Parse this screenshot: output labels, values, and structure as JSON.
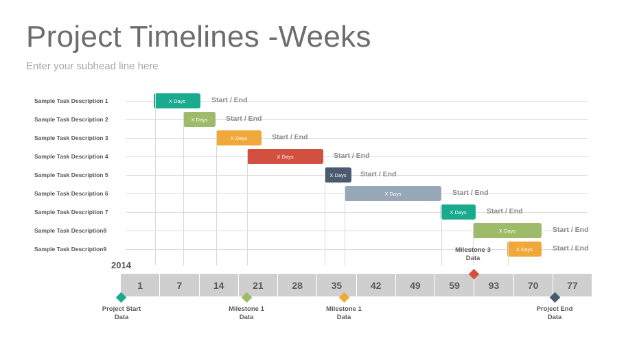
{
  "header": {
    "title": "Project Timelines -Weeks",
    "subtitle": "Enter your subhead line here"
  },
  "tasks": [
    {
      "label": "Sample Task Description 1",
      "bar_label": "X Days",
      "annotation": "Start / End",
      "color": "#1aab8e"
    },
    {
      "label": "Sample Task Description 2",
      "bar_label": "X Days",
      "annotation": "Start / End",
      "color": "#9dbb69"
    },
    {
      "label": "Sample Task Description 3",
      "bar_label": "X Days",
      "annotation": "Start / End",
      "color": "#f0a83a"
    },
    {
      "label": "Sample Task Description 4",
      "bar_label": "X Days",
      "annotation": "Start / End",
      "color": "#d2503f"
    },
    {
      "label": "Sample Task Description 5",
      "bar_label": "X Days",
      "annotation": "Start / End",
      "color": "#4a5b70"
    },
    {
      "label": "Sample Task Description 6",
      "bar_label": "X Days",
      "annotation": "Start / End",
      "color": "#98a7b8"
    },
    {
      "label": "Sample Task Description 7",
      "bar_label": "X Days",
      "annotation": "Start / End",
      "color": "#1aab8e"
    },
    {
      "label": "Sample Task Description8",
      "bar_label": "X Days",
      "annotation": "Start / End",
      "color": "#9dbb69"
    },
    {
      "label": "Sample Task Description9",
      "bar_label": "X Days",
      "annotation": "Start / End",
      "color": "#f0a83a"
    }
  ],
  "timeline": {
    "year": "2014",
    "ticks": [
      "1",
      "7",
      "14",
      "21",
      "28",
      "35",
      "42",
      "49",
      "59",
      "93",
      "70",
      "77"
    ]
  },
  "milestones": [
    {
      "label": "Project Start\nData",
      "color": "#1aab8e"
    },
    {
      "label": "Milestone 1\nData",
      "color": "#9dbb69"
    },
    {
      "label": "Milestone 1\nData",
      "color": "#f0a83a"
    },
    {
      "label": "Milestone 3\nData",
      "color": "#d2503f"
    },
    {
      "label": "Project End\nData",
      "color": "#4a5b70"
    }
  ]
}
